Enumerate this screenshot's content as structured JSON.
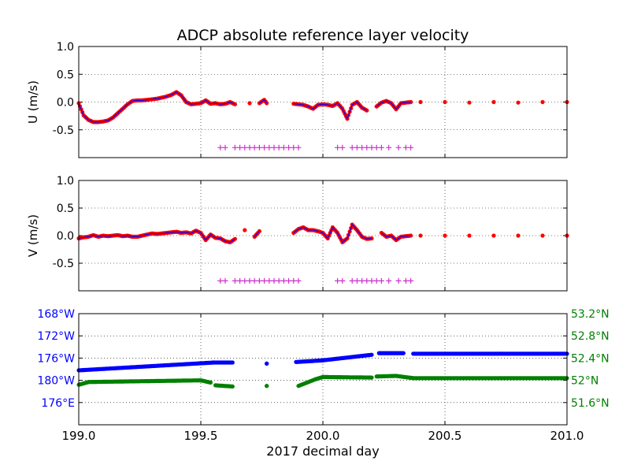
{
  "chart_data": {
    "type": "scatter",
    "title": "ADCP absolute reference layer velocity",
    "xlabel": "2017 decimal day",
    "colors": {
      "dots": "#ff0000",
      "line": "#0000ff",
      "flag": "#cc33cc",
      "lon": "#0000ff",
      "lat": "#008000"
    },
    "panels": [
      {
        "id": "U",
        "ylabel": "U (m/s)",
        "ylim": [
          -1.0,
          1.0
        ],
        "yticks": [
          "1.0",
          "0.5",
          "0.0",
          "-0.5"
        ],
        "ytick_values": [
          1.0,
          0.5,
          0.0,
          -0.5
        ],
        "xlim": [
          199.0,
          201.0
        ],
        "grid": true,
        "series": [
          {
            "kind": "velocity",
            "x": [
              199.0,
              199.02,
              199.04,
              199.06,
              199.08,
              199.1,
              199.12,
              199.14,
              199.16,
              199.18,
              199.2,
              199.22,
              199.24,
              199.26,
              199.28,
              199.3,
              199.32,
              199.34,
              199.36,
              199.38,
              199.4,
              199.42,
              199.44,
              199.46,
              199.48,
              199.5,
              199.52,
              199.54,
              199.56,
              199.58,
              199.6,
              199.62,
              199.64,
              199.7,
              199.74,
              199.76,
              199.77,
              199.88,
              199.9,
              199.92,
              199.94,
              199.96,
              199.98,
              200.0,
              200.02,
              200.04,
              200.06,
              200.08,
              200.1,
              200.12,
              200.14,
              200.16,
              200.18,
              200.22,
              200.24,
              200.26,
              200.28,
              200.3,
              200.32,
              200.34,
              200.36,
              200.4,
              200.5,
              200.6,
              200.7,
              200.8,
              200.9,
              201.0
            ],
            "y": [
              -0.02,
              -0.24,
              -0.32,
              -0.36,
              -0.36,
              -0.35,
              -0.33,
              -0.28,
              -0.2,
              -0.12,
              -0.04,
              0.02,
              0.03,
              0.03,
              0.04,
              0.05,
              0.06,
              0.08,
              0.1,
              0.13,
              0.18,
              0.12,
              0.0,
              -0.04,
              -0.03,
              -0.02,
              0.03,
              -0.03,
              -0.02,
              -0.04,
              -0.03,
              0.0,
              -0.04,
              -0.02,
              -0.02,
              0.04,
              -0.02,
              -0.03,
              -0.04,
              -0.05,
              -0.08,
              -0.12,
              -0.05,
              -0.04,
              -0.05,
              -0.07,
              -0.02,
              -0.12,
              -0.3,
              -0.05,
              0.0,
              -0.1,
              -0.15,
              -0.08,
              -0.01,
              0.02,
              -0.02,
              -0.13,
              -0.02,
              -0.01,
              0.0,
              0.0,
              0.0,
              -0.01,
              0.0,
              -0.01,
              0.0,
              0.0
            ]
          },
          {
            "kind": "flags",
            "y": -0.82,
            "x": [
              199.58,
              199.6,
              199.64,
              199.66,
              199.68,
              199.7,
              199.72,
              199.74,
              199.76,
              199.78,
              199.8,
              199.82,
              199.84,
              199.86,
              199.88,
              199.9,
              200.06,
              200.08,
              200.12,
              200.14,
              200.16,
              200.18,
              200.2,
              200.22,
              200.24,
              200.27,
              200.31,
              200.34,
              200.36
            ]
          }
        ]
      },
      {
        "id": "V",
        "ylabel": "V (m/s)",
        "ylim": [
          -1.0,
          1.0
        ],
        "yticks": [
          "1.0",
          "0.5",
          "0.0",
          "-0.5"
        ],
        "ytick_values": [
          1.0,
          0.5,
          0.0,
          -0.5
        ],
        "xlim": [
          199.0,
          201.0
        ],
        "grid": true,
        "series": [
          {
            "kind": "velocity",
            "x": [
              199.0,
              199.02,
              199.04,
              199.06,
              199.08,
              199.1,
              199.12,
              199.14,
              199.16,
              199.18,
              199.2,
              199.22,
              199.24,
              199.26,
              199.28,
              199.3,
              199.32,
              199.34,
              199.36,
              199.38,
              199.4,
              199.42,
              199.44,
              199.46,
              199.48,
              199.5,
              199.52,
              199.54,
              199.56,
              199.58,
              199.6,
              199.62,
              199.64,
              199.68,
              199.72,
              199.74,
              199.88,
              199.9,
              199.92,
              199.94,
              199.96,
              199.98,
              200.0,
              200.02,
              200.04,
              200.06,
              200.08,
              200.1,
              200.12,
              200.14,
              200.16,
              200.18,
              200.2,
              200.24,
              200.26,
              200.28,
              200.3,
              200.32,
              200.34,
              200.36,
              200.4,
              200.5,
              200.6,
              200.7,
              200.8,
              200.9,
              201.0
            ],
            "y": [
              -0.05,
              -0.03,
              -0.02,
              0.01,
              -0.02,
              0.0,
              -0.01,
              0.0,
              0.01,
              -0.01,
              0.0,
              -0.02,
              -0.02,
              0.0,
              0.02,
              0.04,
              0.03,
              0.04,
              0.05,
              0.06,
              0.07,
              0.05,
              0.06,
              0.04,
              0.09,
              0.05,
              -0.08,
              0.02,
              -0.04,
              -0.05,
              -0.1,
              -0.12,
              -0.06,
              0.1,
              -0.02,
              0.08,
              0.05,
              0.12,
              0.15,
              0.1,
              0.1,
              0.08,
              0.05,
              -0.05,
              0.15,
              0.05,
              -0.12,
              -0.05,
              0.2,
              0.1,
              -0.02,
              -0.06,
              -0.05,
              0.05,
              -0.02,
              0.0,
              -0.08,
              -0.02,
              -0.01,
              0.0,
              0.0,
              0.0,
              0.0,
              0.0,
              0.0,
              0.0,
              0.0
            ]
          },
          {
            "kind": "flags",
            "y": -0.82,
            "x": [
              199.58,
              199.6,
              199.64,
              199.66,
              199.68,
              199.7,
              199.72,
              199.74,
              199.76,
              199.78,
              199.8,
              199.82,
              199.84,
              199.86,
              199.88,
              199.9,
              200.06,
              200.08,
              200.12,
              200.14,
              200.16,
              200.18,
              200.2,
              200.22,
              200.24,
              200.27,
              200.31,
              200.34,
              200.36
            ]
          }
        ]
      },
      {
        "id": "position",
        "xlim": [
          199.0,
          201.0
        ],
        "xticks": [
          "199.0",
          "199.5",
          "200.0",
          "200.5",
          "201.0"
        ],
        "xtick_values": [
          199.0,
          199.5,
          200.0,
          200.5,
          201.0
        ],
        "grid": true,
        "left_axis": {
          "ylim": [
            172,
            192
          ],
          "yticks": [
            "168°W",
            "172°W",
            "176°W",
            "180°W",
            "176°E"
          ],
          "ytick_values": [
            192,
            188,
            184,
            180,
            176
          ]
        },
        "right_axis": {
          "ylim": [
            51.2,
            53.2
          ],
          "yticks": [
            "53.2°N",
            "52.8°N",
            "52.4°N",
            "52°N",
            "51.6°N"
          ],
          "ytick_values": [
            53.2,
            52.8,
            52.4,
            52.0,
            51.6
          ]
        },
        "series": [
          {
            "kind": "longitude",
            "axis": "left",
            "segments": [
              {
                "x": [
                  199.0,
                  199.55
                ],
                "y": [
                  181.8,
                  183.2
                ]
              },
              {
                "x": [
                  199.55,
                  199.63
                ],
                "y": [
                  183.2,
                  183.2
                ]
              },
              {
                "x": [
                  199.77,
                  199.77
                ],
                "y": [
                  183.0,
                  183.0
                ]
              },
              {
                "x": [
                  199.89,
                  200.0
                ],
                "y": [
                  183.3,
                  183.6
                ]
              },
              {
                "x": [
                  200.0,
                  200.2
                ],
                "y": [
                  183.6,
                  184.6
                ]
              },
              {
                "x": [
                  200.23,
                  200.33
                ],
                "y": [
                  184.9,
                  184.9
                ]
              },
              {
                "x": [
                  200.37,
                  201.0
                ],
                "y": [
                  184.8,
                  184.8
                ]
              }
            ]
          },
          {
            "kind": "latitude",
            "axis": "right",
            "segments": [
              {
                "x": [
                  199.0,
                  199.04
                ],
                "y": [
                  51.92,
                  51.97
                ]
              },
              {
                "x": [
                  199.04,
                  199.5
                ],
                "y": [
                  51.97,
                  52.0
                ]
              },
              {
                "x": [
                  199.5,
                  199.54
                ],
                "y": [
                  52.0,
                  51.96
                ]
              },
              {
                "x": [
                  199.56,
                  199.63
                ],
                "y": [
                  51.91,
                  51.89
                ]
              },
              {
                "x": [
                  199.77,
                  199.77
                ],
                "y": [
                  51.9,
                  51.9
                ]
              },
              {
                "x": [
                  199.9,
                  199.97
                ],
                "y": [
                  51.9,
                  52.02
                ]
              },
              {
                "x": [
                  199.97,
                  200.0
                ],
                "y": [
                  52.02,
                  52.06
                ]
              },
              {
                "x": [
                  200.0,
                  200.2
                ],
                "y": [
                  52.06,
                  52.05
                ]
              },
              {
                "x": [
                  200.22,
                  200.3
                ],
                "y": [
                  52.07,
                  52.08
                ]
              },
              {
                "x": [
                  200.3,
                  200.37
                ],
                "y": [
                  52.08,
                  52.04
                ]
              },
              {
                "x": [
                  200.37,
                  201.0
                ],
                "y": [
                  52.04,
                  52.04
                ]
              }
            ]
          }
        ]
      }
    ]
  }
}
